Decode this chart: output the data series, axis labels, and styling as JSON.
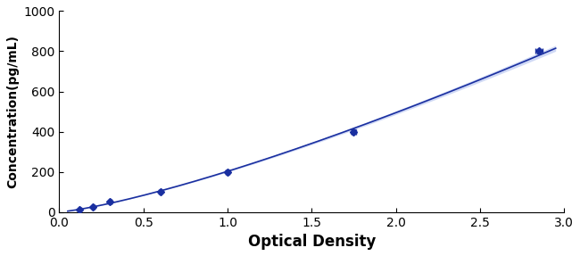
{
  "x": [
    0.12,
    0.2,
    0.3,
    0.6,
    1.0,
    1.75,
    2.85
  ],
  "y": [
    12.5,
    25,
    50,
    100,
    200,
    400,
    800
  ],
  "xerr": [
    0.008,
    0.008,
    0.008,
    0.01,
    0.01,
    0.015,
    0.02
  ],
  "yerr": [
    4,
    4,
    5,
    6,
    8,
    10,
    12
  ],
  "line_color": "#1a2fa0",
  "marker_color": "#1a2fa0",
  "fill_color": "#aabbee",
  "xlabel": "Optical Density",
  "ylabel": "Concentration(pg/mL)",
  "xlim": [
    0,
    3.0
  ],
  "ylim": [
    0,
    1000
  ],
  "xticks": [
    0,
    0.5,
    1.0,
    1.5,
    2.0,
    2.5,
    3.0
  ],
  "yticks": [
    0,
    200,
    400,
    600,
    800,
    1000
  ],
  "xlabel_fontsize": 12,
  "ylabel_fontsize": 10,
  "tick_fontsize": 10,
  "background_color": "#ffffff"
}
